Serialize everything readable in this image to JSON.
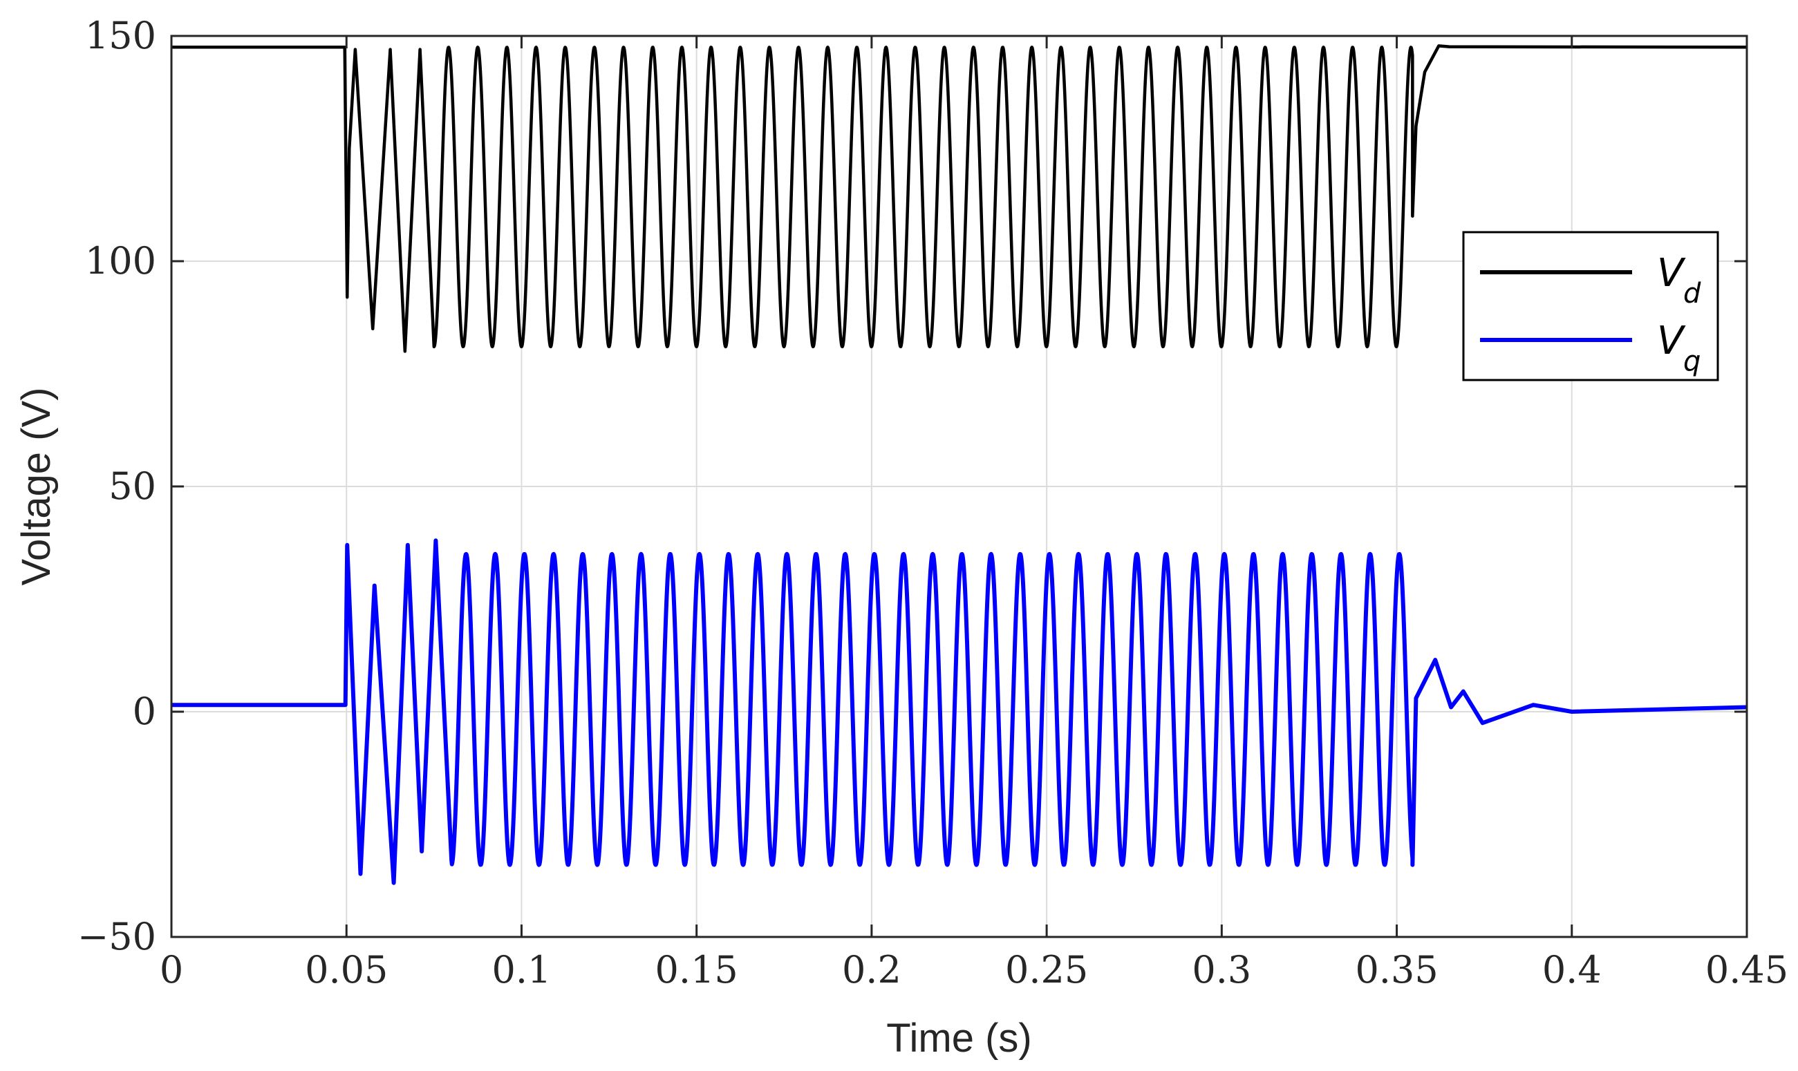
{
  "chart_data": {
    "type": "line",
    "xlabel": "Time (s)",
    "ylabel": "Voltage (V)",
    "xlim": [
      0,
      0.45
    ],
    "ylim": [
      -50,
      150
    ],
    "x_ticks": [
      0,
      0.05,
      0.1,
      0.15,
      0.2,
      0.25,
      0.3,
      0.35,
      0.4,
      0.45
    ],
    "x_tick_labels": [
      "0",
      "0.05",
      "0.1",
      "0.15",
      "0.2",
      "0.25",
      "0.3",
      "0.35",
      "0.4",
      "0.45"
    ],
    "y_ticks": [
      -50,
      0,
      50,
      100,
      150
    ],
    "y_tick_labels": [
      "−50",
      "0",
      "50",
      "100",
      "150"
    ],
    "grid": true,
    "legend_position": "right",
    "colors": {
      "vd": "#000000",
      "vq": "#0000ff",
      "grid": "#dcdcdc",
      "axes": "#262626"
    },
    "series": [
      {
        "id": "vd",
        "name": "Vd",
        "symbol": "V",
        "subscript": "d",
        "description_points": [
          [
            0.0,
            147.5
          ],
          [
            0.0495,
            147.5
          ],
          [
            0.0502,
            92
          ],
          [
            0.0508,
            125
          ],
          [
            0.0525,
            147
          ],
          [
            0.0575,
            85
          ],
          [
            0.0625,
            147
          ],
          [
            0.0667,
            80
          ],
          [
            0.071,
            147
          ],
          [
            0.075,
            81
          ],
          [
            0.35,
            81
          ],
          [
            0.3525,
            147
          ],
          [
            0.3545,
            110
          ],
          [
            0.3555,
            130
          ],
          [
            0.358,
            142
          ],
          [
            0.362,
            147.8
          ],
          [
            0.365,
            147.6
          ],
          [
            0.45,
            147.5
          ]
        ],
        "oscillation": {
          "start": 0.05,
          "end": 0.3545,
          "period": 0.00833,
          "max": 147.5,
          "min": 81
        }
      },
      {
        "id": "vq",
        "name": "Vq",
        "symbol": "V",
        "subscript": "q",
        "description_points": [
          [
            0.0,
            1.5
          ],
          [
            0.0497,
            1.5
          ],
          [
            0.0502,
            37
          ],
          [
            0.054,
            -36
          ],
          [
            0.058,
            28
          ],
          [
            0.0635,
            -38
          ],
          [
            0.0675,
            37
          ],
          [
            0.0715,
            -31
          ],
          [
            0.0755,
            38
          ],
          [
            0.08,
            -33
          ],
          [
            0.35,
            35
          ],
          [
            0.3545,
            -34
          ],
          [
            0.3555,
            3
          ],
          [
            0.361,
            11.5
          ],
          [
            0.3655,
            1
          ],
          [
            0.369,
            4.5
          ],
          [
            0.3745,
            -2.5
          ],
          [
            0.389,
            1.5
          ],
          [
            0.4,
            0
          ],
          [
            0.45,
            1
          ]
        ],
        "oscillation": {
          "start": 0.05,
          "end": 0.3545,
          "period": 0.00833,
          "max": 35,
          "min": -34
        }
      }
    ]
  }
}
